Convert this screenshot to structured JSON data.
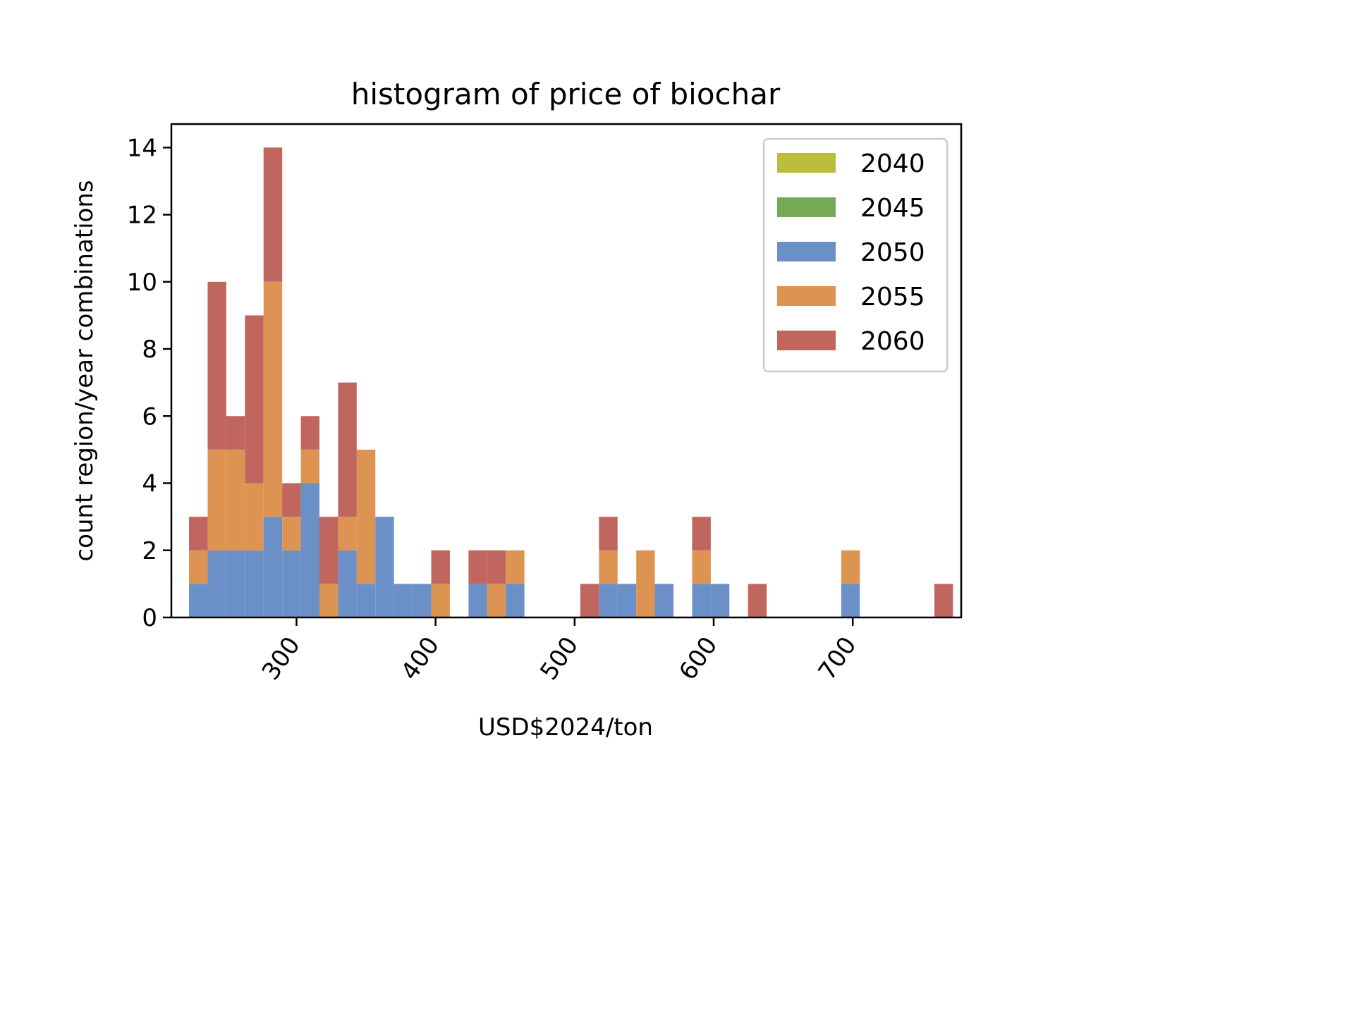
{
  "chart_data": {
    "type": "bar",
    "title": "histogram of price of biochar",
    "xlabel": "USD$2024/ton",
    "ylabel": "count region/year combinations",
    "xlim": [
      210,
      778
    ],
    "ylim": [
      0,
      14.7
    ],
    "x_ticks": [
      300,
      400,
      500,
      600,
      700
    ],
    "y_ticks": [
      0,
      2,
      4,
      6,
      8,
      10,
      12,
      14
    ],
    "grid": false,
    "legend_position": "top-right",
    "stacked": true,
    "bins": [
      {
        "x0": 222.7,
        "x1": 236.1,
        "counts": [
          0,
          0,
          1,
          1,
          1
        ]
      },
      {
        "x0": 236.1,
        "x1": 249.5,
        "counts": [
          0,
          0,
          2,
          3,
          5
        ]
      },
      {
        "x0": 249.5,
        "x1": 262.9,
        "counts": [
          0,
          0,
          2,
          3,
          1
        ]
      },
      {
        "x0": 262.9,
        "x1": 276.3,
        "counts": [
          0,
          0,
          2,
          2,
          5
        ]
      },
      {
        "x0": 276.3,
        "x1": 289.7,
        "counts": [
          0,
          0,
          3,
          7,
          4
        ]
      },
      {
        "x0": 289.7,
        "x1": 303.1,
        "counts": [
          0,
          0,
          2,
          1,
          1
        ]
      },
      {
        "x0": 303.1,
        "x1": 316.5,
        "counts": [
          0,
          0,
          4,
          1,
          1
        ]
      },
      {
        "x0": 316.5,
        "x1": 329.9,
        "counts": [
          0,
          0,
          0,
          1,
          2
        ]
      },
      {
        "x0": 329.9,
        "x1": 343.3,
        "counts": [
          0,
          0,
          2,
          1,
          4
        ]
      },
      {
        "x0": 343.3,
        "x1": 356.7,
        "counts": [
          0,
          0,
          1,
          4,
          0
        ]
      },
      {
        "x0": 356.7,
        "x1": 370.1,
        "counts": [
          0,
          0,
          3,
          0,
          0
        ]
      },
      {
        "x0": 370.1,
        "x1": 383.5,
        "counts": [
          0,
          0,
          1,
          0,
          0
        ]
      },
      {
        "x0": 383.5,
        "x1": 396.9,
        "counts": [
          0,
          0,
          1,
          0,
          0
        ]
      },
      {
        "x0": 396.9,
        "x1": 410.3,
        "counts": [
          0,
          0,
          0,
          1,
          1
        ]
      },
      {
        "x0": 423.7,
        "x1": 437.1,
        "counts": [
          0,
          0,
          1,
          0,
          1
        ]
      },
      {
        "x0": 437.1,
        "x1": 450.5,
        "counts": [
          0,
          0,
          0,
          1,
          1
        ]
      },
      {
        "x0": 450.5,
        "x1": 463.9,
        "counts": [
          0,
          0,
          1,
          1,
          0
        ]
      },
      {
        "x0": 504.1,
        "x1": 517.5,
        "counts": [
          0,
          0,
          0,
          0,
          1
        ]
      },
      {
        "x0": 517.5,
        "x1": 530.9,
        "counts": [
          0,
          0,
          1,
          1,
          1
        ]
      },
      {
        "x0": 530.9,
        "x1": 544.3,
        "counts": [
          0,
          0,
          1,
          0,
          0
        ]
      },
      {
        "x0": 544.3,
        "x1": 557.7,
        "counts": [
          0,
          0,
          0,
          2,
          0
        ]
      },
      {
        "x0": 557.7,
        "x1": 571.1,
        "counts": [
          0,
          0,
          1,
          0,
          0
        ]
      },
      {
        "x0": 584.5,
        "x1": 597.9,
        "counts": [
          0,
          0,
          1,
          1,
          1
        ]
      },
      {
        "x0": 597.9,
        "x1": 611.3,
        "counts": [
          0,
          0,
          1,
          0,
          0
        ]
      },
      {
        "x0": 624.7,
        "x1": 638.1,
        "counts": [
          0,
          0,
          0,
          0,
          1
        ]
      },
      {
        "x0": 691.7,
        "x1": 705.1,
        "counts": [
          0,
          0,
          1,
          1,
          0
        ]
      },
      {
        "x0": 758.7,
        "x1": 772.1,
        "counts": [
          0,
          0,
          0,
          0,
          1
        ]
      }
    ],
    "series": [
      {
        "name": "2040",
        "color": "#bcbd3e"
      },
      {
        "name": "2045",
        "color": "#76a956"
      },
      {
        "name": "2050",
        "color": "#6b90c8"
      },
      {
        "name": "2055",
        "color": "#dd9452"
      },
      {
        "name": "2060",
        "color": "#c1665e"
      }
    ]
  }
}
